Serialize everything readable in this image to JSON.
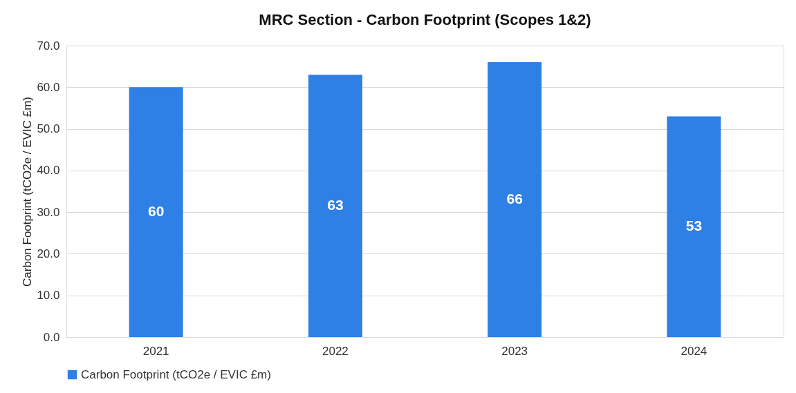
{
  "chart_data": {
    "type": "bar",
    "title": "MRC Section - Carbon Footprint (Scopes 1&2)",
    "ylabel": "Carbon Footprint (tCO2e / EVIC £m)",
    "categories": [
      "2021",
      "2022",
      "2023",
      "2024"
    ],
    "series": [
      {
        "name": "Carbon Footprint (tCO2e / EVIC £m)",
        "color": "#2f80e4",
        "values": [
          60,
          63,
          66,
          53
        ]
      }
    ],
    "ylim": [
      0,
      70
    ],
    "yticks": [
      {
        "value": 0,
        "label": "0.0"
      },
      {
        "value": 10,
        "label": "10.0"
      },
      {
        "value": 20,
        "label": "20.0"
      },
      {
        "value": 30,
        "label": "30.0"
      },
      {
        "value": 40,
        "label": "40.0"
      },
      {
        "value": 50,
        "label": "50.0"
      },
      {
        "value": 60,
        "label": "60.0"
      },
      {
        "value": 70,
        "label": "70.0"
      }
    ],
    "grid": "y",
    "legend": "bottom",
    "data_labels": true
  }
}
